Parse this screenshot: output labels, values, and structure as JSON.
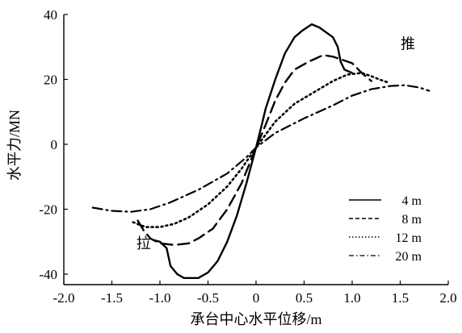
{
  "chart_data": {
    "type": "line",
    "xlabel": "承台中心水平位移/m",
    "ylabel": "水平力/MN",
    "xlim": [
      -2.0,
      2.0
    ],
    "ylim": [
      -45,
      40
    ],
    "x_ticks": [
      -2.0,
      -1.5,
      -1.0,
      -0.5,
      0,
      0.5,
      1.0,
      1.5,
      2.0
    ],
    "x_tick_labels": [
      "-2.0",
      "-1.5",
      "-1.0",
      "-0.5",
      "0",
      "0.5",
      "1.0",
      "1.5",
      "2.0"
    ],
    "y_ticks": [
      -40,
      -20,
      0,
      20,
      40
    ],
    "y_tick_labels": [
      "-40",
      "-20",
      "0",
      "20",
      "40"
    ],
    "grid": false,
    "legend_placement": "bottom-right",
    "annotations": [
      {
        "text": "推",
        "x": 1.58,
        "y": 29.5
      },
      {
        "text": "拉",
        "x": -1.17,
        "y": -32
      }
    ],
    "series": [
      {
        "name": "4 m",
        "dash": "solid",
        "points": [
          [
            -1.07,
            -29.5
          ],
          [
            -1.0,
            -30
          ],
          [
            -0.93,
            -32
          ],
          [
            -0.89,
            -37.5
          ],
          [
            -0.82,
            -40
          ],
          [
            -0.75,
            -41.2
          ],
          [
            -0.6,
            -41.2
          ],
          [
            -0.5,
            -39.5
          ],
          [
            -0.4,
            -36
          ],
          [
            -0.3,
            -30
          ],
          [
            -0.2,
            -22
          ],
          [
            -0.1,
            -12
          ],
          [
            0,
            -1
          ],
          [
            0.06,
            6
          ],
          [
            0.1,
            11
          ],
          [
            0.2,
            20
          ],
          [
            0.3,
            28
          ],
          [
            0.4,
            33
          ],
          [
            0.48,
            35
          ],
          [
            0.58,
            37
          ],
          [
            0.66,
            36
          ],
          [
            0.8,
            33
          ],
          [
            0.85,
            30
          ],
          [
            0.88,
            25.5
          ],
          [
            0.92,
            23
          ],
          [
            1.0,
            22
          ]
        ]
      },
      {
        "name": "8 m",
        "dash": "long-dash",
        "points": [
          [
            -1.23,
            -23.5
          ],
          [
            -1.17,
            -26.5
          ],
          [
            -1.1,
            -29
          ],
          [
            -1.0,
            -30.5
          ],
          [
            -0.85,
            -31
          ],
          [
            -0.7,
            -30.5
          ],
          [
            -0.6,
            -29
          ],
          [
            -0.45,
            -26
          ],
          [
            -0.3,
            -20
          ],
          [
            -0.15,
            -12
          ],
          [
            0,
            -1
          ],
          [
            0.1,
            6
          ],
          [
            0.2,
            13.5
          ],
          [
            0.3,
            19
          ],
          [
            0.4,
            23
          ],
          [
            0.55,
            25.5
          ],
          [
            0.7,
            27.5
          ],
          [
            0.8,
            27
          ],
          [
            0.9,
            26
          ],
          [
            1.0,
            25
          ],
          [
            1.1,
            22
          ],
          [
            1.2,
            19.5
          ]
        ]
      },
      {
        "name": "12 m",
        "dash": "dotted",
        "points": [
          [
            -1.28,
            -24
          ],
          [
            -1.15,
            -25.5
          ],
          [
            -1.0,
            -25.5
          ],
          [
            -0.85,
            -24.5
          ],
          [
            -0.7,
            -22.5
          ],
          [
            -0.5,
            -18.5
          ],
          [
            -0.3,
            -13
          ],
          [
            -0.15,
            -7.5
          ],
          [
            0,
            -1
          ],
          [
            0.2,
            7
          ],
          [
            0.4,
            12.5
          ],
          [
            0.6,
            16
          ],
          [
            0.8,
            19.5
          ],
          [
            0.95,
            21.5
          ],
          [
            1.1,
            22
          ],
          [
            1.2,
            21
          ],
          [
            1.3,
            19.8
          ],
          [
            1.38,
            19
          ]
        ]
      },
      {
        "name": "20 m",
        "dash": "dash-dot",
        "points": [
          [
            -1.7,
            -19.5
          ],
          [
            -1.5,
            -20.5
          ],
          [
            -1.3,
            -20.8
          ],
          [
            -1.1,
            -20
          ],
          [
            -0.9,
            -18
          ],
          [
            -0.6,
            -14
          ],
          [
            -0.3,
            -9
          ],
          [
            -0.1,
            -4
          ],
          [
            0,
            -1
          ],
          [
            0.2,
            3.5
          ],
          [
            0.5,
            8
          ],
          [
            0.8,
            12
          ],
          [
            1.0,
            15
          ],
          [
            1.2,
            17
          ],
          [
            1.4,
            18
          ],
          [
            1.55,
            18.2
          ],
          [
            1.7,
            17.5
          ],
          [
            1.8,
            16.5
          ]
        ]
      }
    ]
  }
}
